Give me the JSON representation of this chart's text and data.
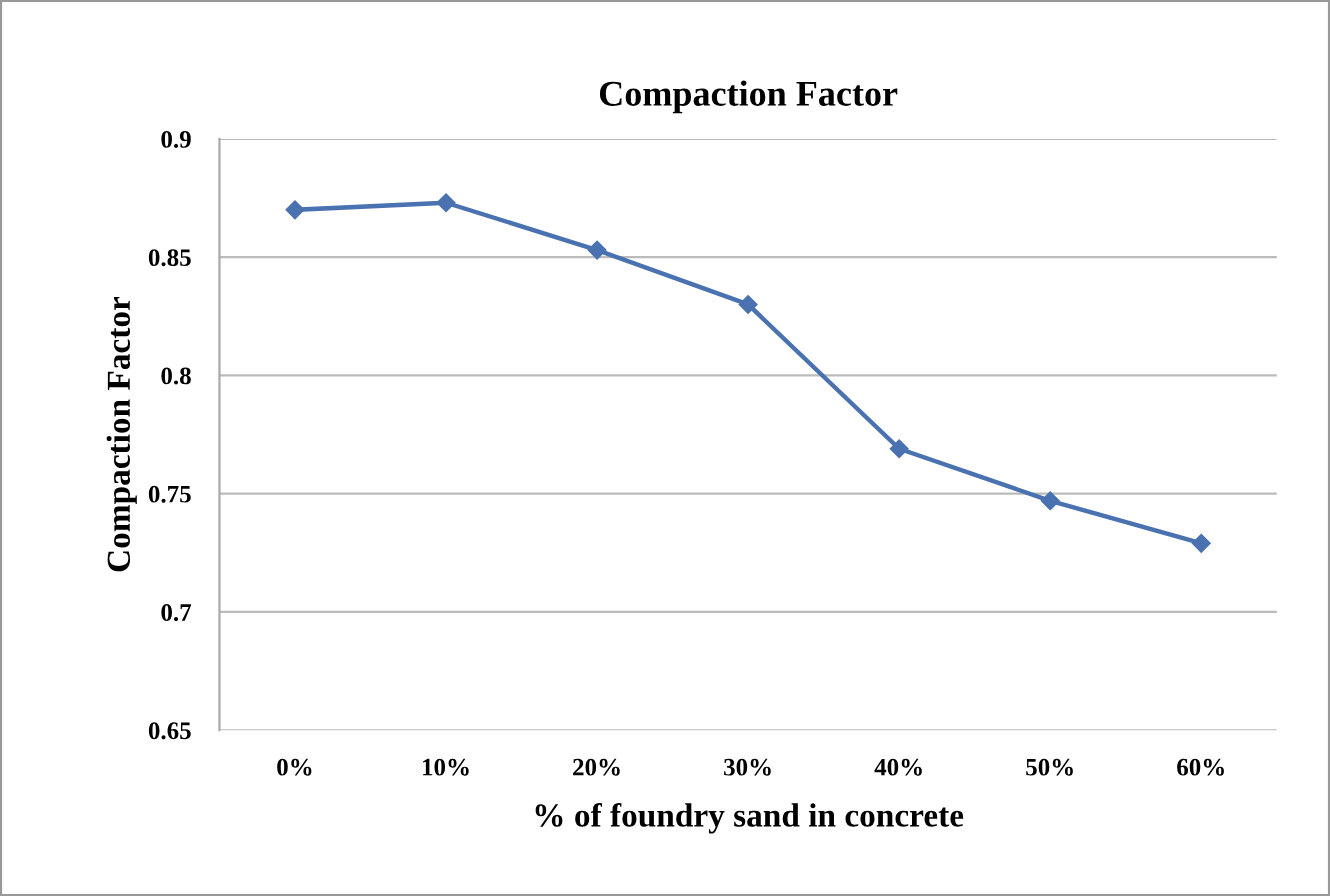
{
  "chart_data": {
    "type": "line",
    "title": "Compaction Factor",
    "xlabel": "% of foundry sand in concrete",
    "ylabel": "Compaction Factor",
    "categories": [
      "0%",
      "10%",
      "20%",
      "30%",
      "40%",
      "50%",
      "60%"
    ],
    "series": [
      {
        "color": "#4a72b0",
        "values": [
          0.87,
          0.873,
          0.853,
          0.83,
          0.769,
          0.747,
          0.729
        ]
      }
    ],
    "ylim": [
      0.65,
      0.9
    ],
    "yticks": [
      0.65,
      0.7,
      0.75,
      0.8,
      0.85,
      0.9
    ],
    "grid": "y",
    "marker": "diamond",
    "line_style": "solid",
    "legend": false
  }
}
